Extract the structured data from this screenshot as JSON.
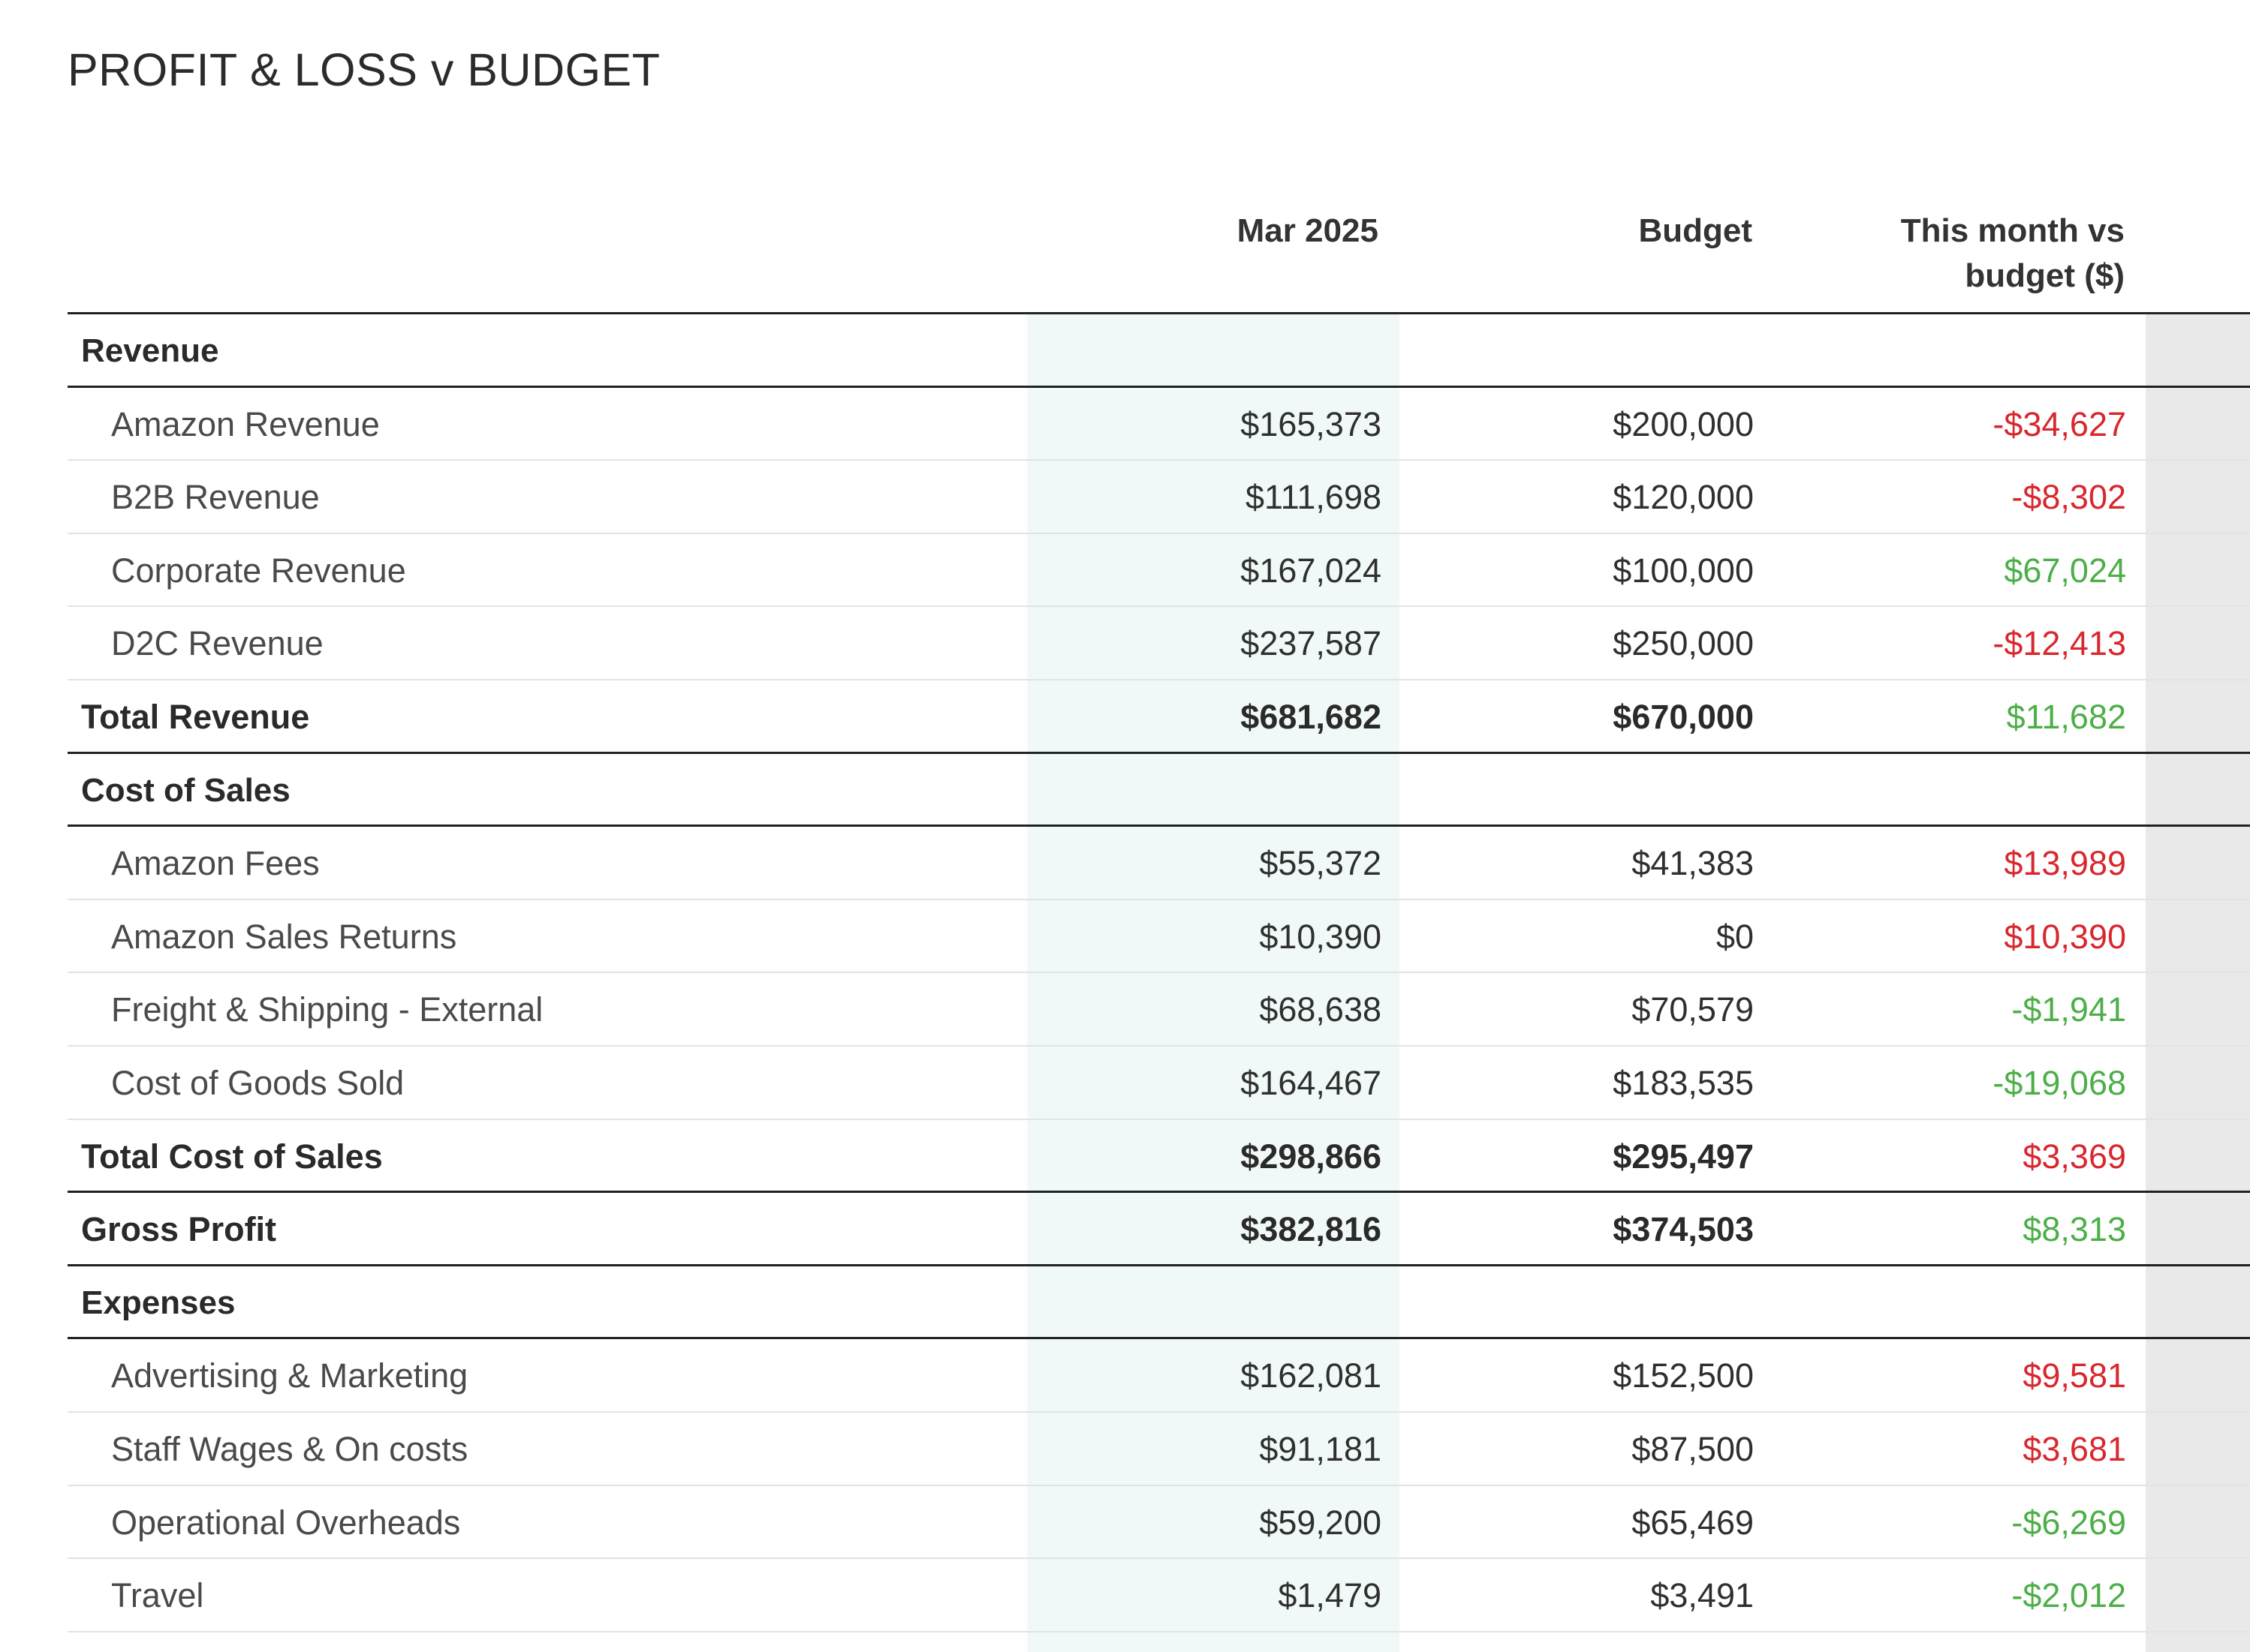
{
  "title": "PROFIT & LOSS v BUDGET",
  "columns": {
    "current": "Mar 2025",
    "budget": "Budget",
    "variance_line1": "This month vs",
    "variance_line2": "budget ($)"
  },
  "colors": {
    "unfavourable": "#d9272e",
    "favourable": "#4caf48",
    "current_column_band": "#f1f9f8",
    "right_band": "#e9e9e9"
  },
  "rows": [
    {
      "type": "heading",
      "label": "Revenue"
    },
    {
      "type": "item",
      "label": "Amazon Revenue",
      "current": "$165,373",
      "budget": "$200,000",
      "variance": "-$34,627",
      "status": "unfavourable"
    },
    {
      "type": "item",
      "label": "B2B Revenue",
      "current": "$111,698",
      "budget": "$120,000",
      "variance": "-$8,302",
      "status": "unfavourable"
    },
    {
      "type": "item",
      "label": "Corporate Revenue",
      "current": "$167,024",
      "budget": "$100,000",
      "variance": "$67,024",
      "status": "favourable"
    },
    {
      "type": "item",
      "label": "D2C Revenue",
      "current": "$237,587",
      "budget": "$250,000",
      "variance": "-$12,413",
      "status": "unfavourable"
    },
    {
      "type": "total",
      "label": "Total Revenue",
      "current": "$681,682",
      "budget": "$670,000",
      "variance": "$11,682",
      "status": "favourable"
    },
    {
      "type": "heading",
      "label": "Cost of Sales"
    },
    {
      "type": "item",
      "label": "Amazon Fees",
      "current": "$55,372",
      "budget": "$41,383",
      "variance": "$13,989",
      "status": "unfavourable"
    },
    {
      "type": "item",
      "label": "Amazon Sales Returns",
      "current": "$10,390",
      "budget": "$0",
      "variance": "$10,390",
      "status": "unfavourable"
    },
    {
      "type": "item",
      "label": "Freight & Shipping - External",
      "current": "$68,638",
      "budget": "$70,579",
      "variance": "-$1,941",
      "status": "favourable"
    },
    {
      "type": "item",
      "label": "Cost of Goods Sold",
      "current": "$164,467",
      "budget": "$183,535",
      "variance": "-$19,068",
      "status": "favourable"
    },
    {
      "type": "total",
      "label": "Total Cost of Sales",
      "current": "$298,866",
      "budget": "$295,497",
      "variance": "$3,369",
      "status": "unfavourable"
    },
    {
      "type": "total",
      "label": "Gross Profit",
      "current": "$382,816",
      "budget": "$374,503",
      "variance": "$8,313",
      "status": "favourable"
    },
    {
      "type": "heading",
      "label": "Expenses"
    },
    {
      "type": "item",
      "label": "Advertising & Marketing",
      "current": "$162,081",
      "budget": "$152,500",
      "variance": "$9,581",
      "status": "unfavourable"
    },
    {
      "type": "item",
      "label": "Staff Wages & On costs",
      "current": "$91,181",
      "budget": "$87,500",
      "variance": "$3,681",
      "status": "unfavourable"
    },
    {
      "type": "item",
      "label": "Operational Overheads",
      "current": "$59,200",
      "budget": "$65,469",
      "variance": "-$6,269",
      "status": "favourable"
    },
    {
      "type": "item",
      "label": "Travel",
      "current": "$1,479",
      "budget": "$3,491",
      "variance": "-$2,012",
      "status": "favourable"
    }
  ]
}
